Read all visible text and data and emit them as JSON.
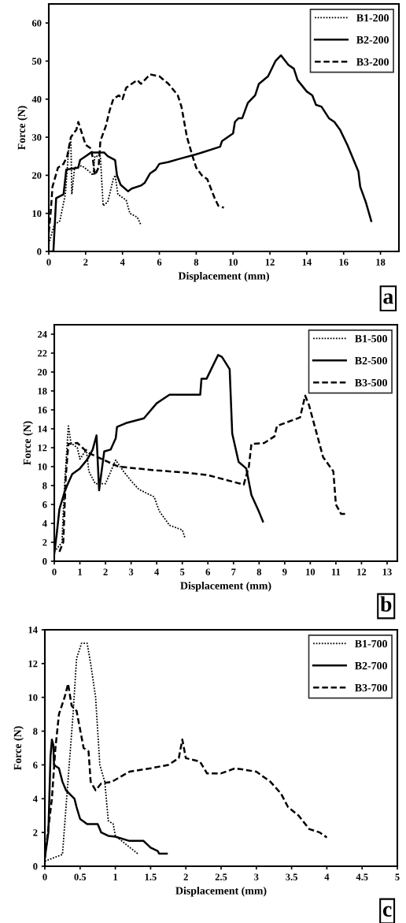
{
  "chart_data": [
    {
      "type": "line",
      "xlabel": "Displacement (mm)",
      "ylabel": "Force (N)",
      "xlim": [
        0,
        19
      ],
      "ylim": [
        0,
        65
      ],
      "xticks": [
        0,
        2,
        4,
        6,
        8,
        10,
        12,
        14,
        16,
        18
      ],
      "yticks": [
        0,
        10,
        20,
        30,
        40,
        50,
        60
      ],
      "legend": "top right",
      "grid": false,
      "annotations": [
        "a"
      ],
      "series": [
        {
          "name": "B1-200",
          "color": "#000000",
          "line_style": "dotted",
          "x": [
            0,
            0.3,
            0.6,
            0.9,
            1.1,
            1.2,
            1.25,
            1.4,
            1.8,
            2.2,
            2.4,
            2.5,
            2.8,
            2.95,
            3.2,
            3.5,
            3.6,
            3.75,
            4.2,
            4.4,
            4.8,
            5.0
          ],
          "values": [
            2,
            7,
            8,
            15,
            28,
            29,
            15,
            22,
            22.5,
            21,
            20,
            25,
            25,
            12,
            13,
            19,
            20,
            15,
            13.5,
            10,
            9,
            7
          ]
        },
        {
          "name": "B2-200",
          "color": "#000000",
          "line_style": "solid",
          "x": [
            0,
            0.25,
            0.4,
            0.8,
            0.95,
            1.6,
            1.7,
            2.0,
            2.3,
            3.0,
            3.2,
            3.6,
            3.7,
            3.9,
            4.3,
            4.5,
            5.0,
            5.2,
            5.5,
            5.8,
            6.0,
            6.5,
            7,
            8,
            9.3,
            9.4,
            10,
            10.1,
            10.3,
            10.5,
            10.8,
            11.2,
            11.4,
            11.9,
            12.3,
            12.6,
            13.0,
            13.3,
            13.5,
            14.0,
            14.3,
            14.5,
            14.8,
            15.2,
            15.5,
            15.8,
            16.2,
            16.8,
            16.9,
            17.2,
            17.5
          ],
          "values": [
            0,
            0,
            14,
            15,
            21.5,
            22,
            24,
            25,
            26,
            26,
            25,
            24,
            20,
            17.5,
            15.8,
            16.5,
            17.3,
            18,
            20.5,
            21.5,
            23,
            23.5,
            24.2,
            25.5,
            27.5,
            29,
            31,
            34,
            35,
            35,
            39,
            41,
            44,
            46,
            50,
            51.5,
            49,
            48,
            45,
            42,
            41,
            38.5,
            38,
            35,
            34,
            32,
            28,
            21,
            17,
            13,
            8
          ]
        },
        {
          "name": "B3-200",
          "color": "#000000",
          "line_style": "dashed",
          "x": [
            0,
            0.1,
            0.2,
            0.5,
            0.8,
            1.0,
            1.2,
            1.5,
            1.6,
            1.8,
            2.0,
            2.3,
            2.4,
            2.5,
            2.7,
            2.8,
            3.1,
            3.3,
            3.5,
            3.8,
            4.0,
            4.2,
            4.8,
            5.0,
            5.5,
            6.0,
            6.5,
            7.0,
            7.2,
            7.5,
            7.8,
            8.0,
            8.3,
            8.6,
            9.0,
            9.2,
            9.5
          ],
          "values": [
            5,
            10,
            17,
            22,
            23,
            25,
            30,
            32,
            34,
            31,
            28,
            27,
            24,
            20,
            22,
            29,
            33,
            37,
            40,
            41,
            40,
            43,
            45,
            44,
            46.5,
            46,
            44,
            41,
            38,
            30,
            25,
            22,
            20,
            19,
            14,
            12,
            11.5
          ]
        }
      ]
    },
    {
      "type": "line",
      "xlabel": "Displacement (mm)",
      "ylabel": "Force (N)",
      "xlim": [
        0,
        13.4
      ],
      "ylim": [
        0,
        25
      ],
      "xticks": [
        0,
        1,
        2,
        3,
        4,
        5,
        6,
        7,
        8,
        9,
        10,
        11,
        12,
        13
      ],
      "yticks": [
        0,
        2,
        4,
        6,
        8,
        10,
        12,
        14,
        16,
        18,
        20,
        22,
        24
      ],
      "legend": "top right",
      "grid": false,
      "annotations": [
        "b"
      ],
      "series": [
        {
          "name": "B1-500",
          "color": "#000000",
          "line_style": "dotted",
          "x": [
            0,
            0.3,
            0.4,
            0.55,
            0.65,
            0.9,
            1.0,
            1.25,
            1.35,
            1.6,
            2.0,
            2.4,
            2.7,
            3.0,
            3.3,
            3.9,
            4.1,
            4.5,
            5.0,
            5.1
          ],
          "values": [
            1,
            2,
            8,
            14.3,
            12.5,
            12,
            10.8,
            11.8,
            9.5,
            8.2,
            8.2,
            10.7,
            9.5,
            8.5,
            7.6,
            6.8,
            5.3,
            3.8,
            3.3,
            2.5
          ]
        },
        {
          "name": "B2-500",
          "color": "#000000",
          "line_style": "solid",
          "x": [
            0,
            0.1,
            0.2,
            0.4,
            0.5,
            0.7,
            1.0,
            1.3,
            1.5,
            1.65,
            1.75,
            1.95,
            2.2,
            2.4,
            2.45,
            2.8,
            3.5,
            4.0,
            4.5,
            5.7,
            5.75,
            5.95,
            6.2,
            6.4,
            6.55,
            6.85,
            6.95,
            7.2,
            7.5,
            7.7,
            8.0,
            8.15
          ],
          "values": [
            0.8,
            3,
            5.5,
            7.3,
            8,
            9.2,
            9.8,
            10.8,
            11.8,
            13.3,
            7.5,
            11.6,
            11.8,
            13,
            14.2,
            14.6,
            15.1,
            16.7,
            17.6,
            17.6,
            19.3,
            19.3,
            20.7,
            21.8,
            21.6,
            20.3,
            13.5,
            10.5,
            9.8,
            7,
            5.2,
            4.2
          ]
        },
        {
          "name": "B3-500",
          "color": "#000000",
          "line_style": "dashed",
          "x": [
            0.2,
            0.35,
            0.45,
            0.55,
            0.9,
            1.3,
            2.5,
            4,
            5,
            6,
            7.4,
            7.6,
            7.7,
            8.2,
            8.6,
            8.7,
            9.6,
            9.8,
            9.95,
            10.2,
            10.5,
            10.9,
            11.0,
            11.2,
            11.4
          ],
          "values": [
            1,
            2,
            9,
            12.4,
            12.5,
            11.5,
            10,
            9.6,
            9.4,
            9.1,
            8.1,
            10,
            12.4,
            12.5,
            13.2,
            14.3,
            15.2,
            17.5,
            16.5,
            14,
            11,
            9.5,
            6,
            5,
            5
          ]
        }
      ]
    },
    {
      "type": "line",
      "xlabel": "Displacement (mm)",
      "ylabel": "Force (N)",
      "xlim": [
        0,
        5
      ],
      "ylim": [
        0,
        14
      ],
      "xticks": [
        0,
        0.5,
        1,
        1.5,
        2,
        2.5,
        3,
        3.5,
        4,
        4.5,
        5
      ],
      "yticks": [
        0,
        2,
        4,
        6,
        8,
        10,
        12,
        14
      ],
      "legend": "top right",
      "grid": false,
      "annotations": [
        "c"
      ],
      "series": [
        {
          "name": "B1-700",
          "color": "#000000",
          "line_style": "dotted",
          "x": [
            0,
            0.25,
            0.3,
            0.4,
            0.45,
            0.52,
            0.6,
            0.65,
            0.72,
            0.78,
            0.85,
            0.9,
            0.97,
            1.0,
            1.15,
            1.33
          ],
          "values": [
            0.3,
            0.7,
            3.5,
            9,
            12.3,
            13.2,
            13.2,
            12,
            10,
            6,
            5,
            2.7,
            2.5,
            1.8,
            1.3,
            0.7
          ]
        },
        {
          "name": "B2-700",
          "color": "#000000",
          "line_style": "solid",
          "x": [
            0,
            0.05,
            0.08,
            0.1,
            0.12,
            0.13,
            0.2,
            0.25,
            0.3,
            0.42,
            0.45,
            0.5,
            0.6,
            0.75,
            0.8,
            0.9,
            1.0,
            1.2,
            1.4,
            1.5,
            1.6,
            1.62,
            1.73
          ],
          "values": [
            0.5,
            2,
            6.5,
            7.5,
            7.2,
            6,
            5.8,
            5,
            4.5,
            4.0,
            3.5,
            2.8,
            2.5,
            2.5,
            2.0,
            1.8,
            1.75,
            1.5,
            1.5,
            1.1,
            0.9,
            0.75,
            0.75
          ]
        },
        {
          "name": "B3-700",
          "color": "#000000",
          "line_style": "dashed",
          "x": [
            0,
            0.1,
            0.15,
            0.2,
            0.28,
            0.33,
            0.38,
            0.45,
            0.55,
            0.62,
            0.65,
            0.72,
            0.8,
            0.95,
            1.2,
            1.5,
            1.75,
            1.9,
            1.95,
            2.0,
            2.2,
            2.3,
            2.5,
            2.7,
            3.0,
            3.2,
            3.35,
            3.45,
            3.6,
            3.75,
            3.9,
            4.0
          ],
          "values": [
            0.5,
            4,
            7,
            9,
            10,
            10.8,
            9.5,
            9.2,
            7,
            6.8,
            5,
            4.5,
            4.9,
            5,
            5.6,
            5.8,
            6.0,
            6.4,
            7.5,
            6.4,
            6.2,
            5.5,
            5.5,
            5.8,
            5.6,
            5.0,
            4.3,
            3.5,
            3.0,
            2.2,
            2.0,
            1.7
          ]
        }
      ]
    }
  ]
}
